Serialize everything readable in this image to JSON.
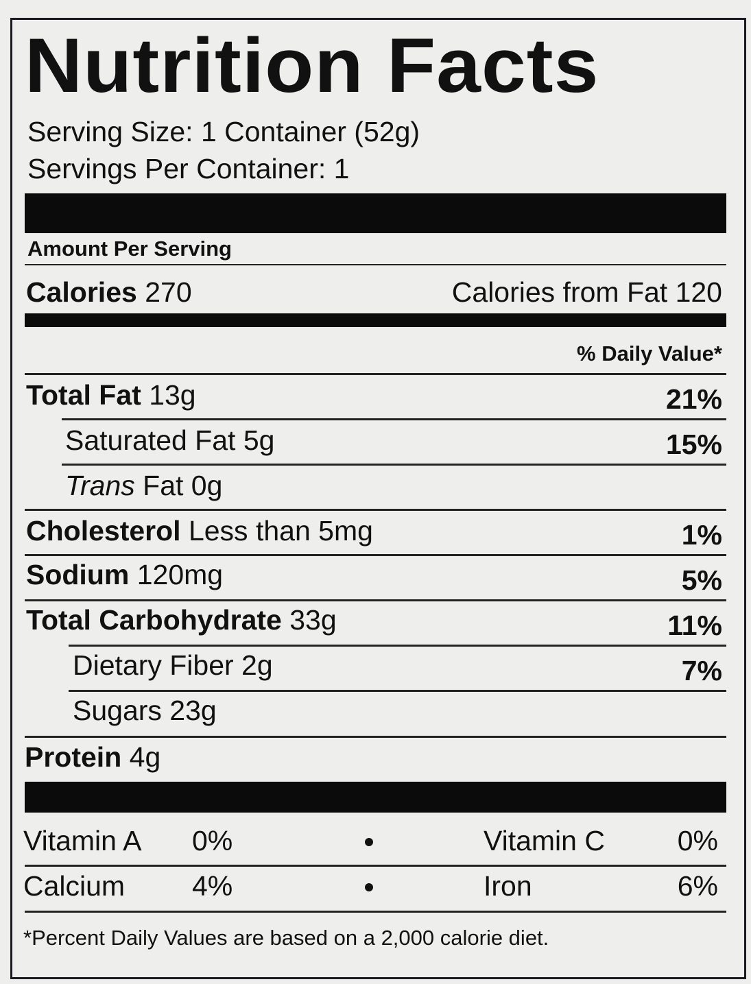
{
  "title": "Nutrition Facts",
  "serving_size": "Serving Size: 1 Container (52g)",
  "servings_per_container": "Servings Per Container: 1",
  "amount_per_serving": "Amount Per Serving",
  "calories": {
    "label": "Calories",
    "value": "270",
    "from_fat": "Calories from Fat 120"
  },
  "daily_value_header": "% Daily Value*",
  "nutrients": [
    {
      "label": "Total Fat",
      "value": "13g",
      "dv": "21%"
    },
    {
      "label": "Saturated Fat 5g",
      "dv": "15%"
    },
    {
      "label_italic": "Trans",
      "label": "Fat 0g"
    },
    {
      "label": "Cholesterol",
      "value": "Less than 5mg",
      "dv": "1%"
    },
    {
      "label": "Sodium",
      "value": "120mg",
      "dv": "5%"
    },
    {
      "label": "Total Carbohydrate",
      "value": "33g",
      "dv": "11%"
    },
    {
      "label": "Dietary Fiber 2g",
      "dv": "7%"
    },
    {
      "label": "Sugars 23g"
    },
    {
      "label": "Protein",
      "value": "4g"
    }
  ],
  "vitamins": [
    {
      "left_label": "Vitamin A",
      "left_value": "0%",
      "right_label": "Vitamin C",
      "right_value": "0%"
    },
    {
      "left_label": "Calcium",
      "left_value": "4%",
      "right_label": "Iron",
      "right_value": "6%"
    }
  ],
  "footnote": "*Percent Daily Values are based on a 2,000 calorie diet."
}
